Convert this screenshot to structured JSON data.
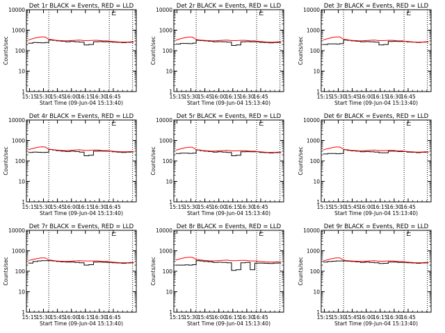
{
  "figure": {
    "background": "#ffffff"
  },
  "style": {
    "events_color": "#000000",
    "lld_color": "#ff0000",
    "marker_color": "#000000"
  },
  "chart_data": [
    {
      "type": "line",
      "title": "Det 1r BLACK = Events, RED = LLD",
      "ylabel": "Counts/sec",
      "xlabel": "Start Time (09-Jun-04 15:13:40)",
      "y_scale": "log",
      "ylim": [
        1,
        10000
      ],
      "y_ticks": [
        "1",
        "10",
        "100",
        "1000",
        "10000"
      ],
      "x_ticks": [
        "15:15",
        "15:30",
        "15:45",
        "16:00",
        "16:15",
        "16:30",
        "16:45"
      ],
      "x": [
        0,
        5,
        10,
        14,
        18,
        22,
        26,
        30,
        35,
        40,
        45,
        50,
        55,
        60,
        65,
        70,
        75,
        80,
        85,
        90,
        95,
        100,
        105,
        110,
        113
      ],
      "series": [
        {
          "name": "Events",
          "values": [
            230,
            250,
            245,
            240,
            250,
            330,
            320,
            300,
            290,
            270,
            280,
            270,
            260,
            190,
            200,
            270,
            275,
            270,
            270,
            260,
            255,
            245,
            255,
            260,
            265
          ]
        },
        {
          "name": "LLD",
          "values": [
            330,
            390,
            440,
            470,
            470,
            360,
            340,
            320,
            310,
            300,
            310,
            320,
            330,
            310,
            310,
            320,
            320,
            300,
            300,
            280,
            270,
            260,
            260,
            270,
            270
          ]
        }
      ],
      "vlines": [
        22,
        87,
        112
      ],
      "marker": "⊏"
    },
    {
      "type": "line",
      "title": "Det 2r BLACK = Events, RED = LLD",
      "ylabel": "Counts/sec",
      "xlabel": "Start Time (09-Jun-04 15:13:40)",
      "y_scale": "log",
      "ylim": [
        1,
        10000
      ],
      "y_ticks": [
        "1",
        "10",
        "100",
        "1000",
        "10000"
      ],
      "x_ticks": [
        "15:15",
        "15:30",
        "15:45",
        "16:00",
        "16:15",
        "16:30",
        "16:45"
      ],
      "x": [
        0,
        5,
        10,
        14,
        18,
        22,
        26,
        30,
        35,
        40,
        45,
        50,
        55,
        60,
        65,
        70,
        75,
        80,
        85,
        90,
        95,
        100,
        105,
        110,
        113
      ],
      "series": [
        {
          "name": "Events",
          "values": [
            210,
            225,
            225,
            220,
            230,
            320,
            310,
            300,
            290,
            270,
            275,
            270,
            260,
            180,
            190,
            270,
            275,
            270,
            270,
            255,
            250,
            240,
            250,
            255,
            260
          ]
        },
        {
          "name": "LLD",
          "values": [
            320,
            380,
            430,
            460,
            460,
            350,
            330,
            320,
            310,
            300,
            310,
            320,
            330,
            310,
            310,
            320,
            320,
            300,
            300,
            280,
            270,
            260,
            260,
            270,
            270
          ]
        }
      ],
      "vlines": [
        22,
        87,
        112
      ],
      "marker": "⊏"
    },
    {
      "type": "line",
      "title": "Det 3r BLACK = Events, RED = LLD",
      "ylabel": "Counts/sec",
      "xlabel": "Start Time (09-Jun-04 15:13:40)",
      "y_scale": "log",
      "ylim": [
        1,
        10000
      ],
      "y_ticks": [
        "1",
        "10",
        "100",
        "1000",
        "10000"
      ],
      "x_ticks": [
        "15:15",
        "15:30",
        "15:45",
        "16:00",
        "16:15",
        "16:30",
        "16:45"
      ],
      "x": [
        0,
        5,
        10,
        14,
        18,
        22,
        26,
        30,
        35,
        40,
        45,
        50,
        55,
        60,
        65,
        70,
        75,
        80,
        85,
        90,
        95,
        100,
        105,
        110,
        113
      ],
      "series": [
        {
          "name": "Events",
          "values": [
            200,
            215,
            215,
            210,
            220,
            330,
            320,
            300,
            290,
            270,
            275,
            270,
            260,
            190,
            200,
            280,
            285,
            280,
            280,
            265,
            260,
            250,
            260,
            265,
            270
          ]
        },
        {
          "name": "LLD",
          "values": [
            330,
            390,
            440,
            470,
            470,
            360,
            340,
            320,
            310,
            300,
            310,
            320,
            330,
            310,
            310,
            320,
            320,
            300,
            300,
            280,
            270,
            260,
            260,
            270,
            270
          ]
        }
      ],
      "vlines": [
        22,
        87,
        112
      ],
      "marker": "⊏"
    },
    {
      "type": "line",
      "title": "Det 4r BLACK = Events, RED = LLD",
      "ylabel": "Counts/sec",
      "xlabel": "Start Time (09-Jun-04 15:13:40)",
      "y_scale": "log",
      "ylim": [
        1,
        10000
      ],
      "y_ticks": [
        "1",
        "10",
        "100",
        "1000",
        "10000"
      ],
      "x_ticks": [
        "15:15",
        "15:30",
        "15:45",
        "16:00",
        "16:15",
        "16:30",
        "16:45"
      ],
      "x": [
        0,
        5,
        10,
        14,
        18,
        22,
        26,
        30,
        35,
        40,
        45,
        50,
        55,
        60,
        65,
        70,
        75,
        80,
        85,
        90,
        95,
        100,
        105,
        110,
        113
      ],
      "series": [
        {
          "name": "Events",
          "values": [
            260,
            270,
            265,
            260,
            265,
            360,
            340,
            320,
            300,
            290,
            300,
            290,
            270,
            180,
            190,
            300,
            305,
            300,
            300,
            280,
            270,
            260,
            270,
            275,
            280
          ]
        },
        {
          "name": "LLD",
          "values": [
            350,
            410,
            460,
            490,
            480,
            380,
            360,
            340,
            330,
            320,
            330,
            340,
            350,
            330,
            330,
            340,
            340,
            320,
            320,
            300,
            290,
            280,
            280,
            290,
            290
          ]
        }
      ],
      "vlines": [
        22,
        87,
        112
      ],
      "marker": "⊏"
    },
    {
      "type": "line",
      "title": "Det 5r BLACK = Events, RED = LLD",
      "ylabel": "Counts/sec",
      "xlabel": "Start Time (09-Jun-04 15:13:40)",
      "y_scale": "log",
      "ylim": [
        1,
        10000
      ],
      "y_ticks": [
        "1",
        "10",
        "100",
        "1000",
        "10000"
      ],
      "x_ticks": [
        "15:15",
        "15:30",
        "15:45",
        "16:00",
        "16:15",
        "16:30",
        "16:45"
      ],
      "x": [
        0,
        5,
        10,
        14,
        18,
        22,
        26,
        30,
        35,
        40,
        45,
        50,
        55,
        60,
        65,
        70,
        75,
        80,
        85,
        90,
        95,
        100,
        105,
        110,
        113
      ],
      "series": [
        {
          "name": "Events",
          "values": [
            230,
            240,
            240,
            235,
            240,
            340,
            320,
            300,
            290,
            270,
            280,
            270,
            260,
            180,
            190,
            280,
            285,
            280,
            280,
            260,
            255,
            245,
            255,
            260,
            265
          ]
        },
        {
          "name": "LLD",
          "values": [
            330,
            390,
            440,
            470,
            470,
            360,
            340,
            320,
            310,
            300,
            310,
            320,
            330,
            310,
            310,
            320,
            320,
            300,
            300,
            280,
            270,
            260,
            260,
            270,
            270
          ]
        }
      ],
      "vlines": [
        22,
        87,
        112
      ],
      "marker": "⊏"
    },
    {
      "type": "line",
      "title": "Det 6r BLACK = Events, RED = LLD",
      "ylabel": "Counts/sec",
      "xlabel": "Start Time (09-Jun-04 15:13:40)",
      "y_scale": "log",
      "ylim": [
        1,
        10000
      ],
      "y_ticks": [
        "1",
        "10",
        "100",
        "1000",
        "10000"
      ],
      "x_ticks": [
        "15:15",
        "15:30",
        "15:45",
        "16:00",
        "16:15",
        "16:30",
        "16:45"
      ],
      "x": [
        0,
        5,
        10,
        14,
        18,
        22,
        26,
        30,
        35,
        40,
        45,
        50,
        55,
        60,
        65,
        70,
        75,
        80,
        85,
        90,
        95,
        100,
        105,
        110,
        113
      ],
      "series": [
        {
          "name": "Events",
          "values": [
            220,
            230,
            230,
            225,
            230,
            350,
            330,
            310,
            300,
            280,
            290,
            280,
            270,
            250,
            250,
            300,
            300,
            290,
            290,
            270,
            265,
            255,
            265,
            270,
            275
          ]
        },
        {
          "name": "LLD",
          "values": [
            340,
            400,
            450,
            480,
            480,
            370,
            350,
            330,
            320,
            310,
            320,
            330,
            340,
            320,
            320,
            330,
            330,
            310,
            310,
            290,
            280,
            270,
            270,
            280,
            280
          ]
        }
      ],
      "vlines": [
        22,
        87,
        112
      ],
      "marker": "⊏"
    },
    {
      "type": "line",
      "title": "Det 7r BLACK = Events, RED = LLD",
      "ylabel": "Counts/sec",
      "xlabel": "Start Time (09-Jun-04 15:13:40)",
      "y_scale": "log",
      "ylim": [
        1,
        10000
      ],
      "y_ticks": [
        "1",
        "10",
        "100",
        "1000",
        "10000"
      ],
      "x_ticks": [
        "15:15",
        "15:30",
        "15:45",
        "16:00",
        "16:15",
        "16:30",
        "16:45"
      ],
      "x": [
        0,
        5,
        10,
        14,
        18,
        22,
        26,
        30,
        35,
        40,
        45,
        50,
        55,
        60,
        65,
        70,
        75,
        80,
        85,
        90,
        95,
        100,
        105,
        110,
        113
      ],
      "series": [
        {
          "name": "Events",
          "values": [
            250,
            300,
            320,
            330,
            330,
            330,
            320,
            300,
            290,
            280,
            280,
            270,
            260,
            200,
            210,
            280,
            280,
            275,
            270,
            260,
            255,
            245,
            255,
            260,
            265
          ]
        },
        {
          "name": "LLD",
          "values": [
            330,
            380,
            420,
            450,
            450,
            360,
            340,
            320,
            310,
            300,
            310,
            320,
            330,
            320,
            320,
            320,
            320,
            300,
            300,
            280,
            270,
            260,
            260,
            270,
            270
          ]
        }
      ],
      "vlines": [
        22,
        87,
        112
      ],
      "marker": "⊏"
    },
    {
      "type": "line",
      "title": "Det 8r BLACK = Events, RED = LLD",
      "ylabel": "Counts/sec",
      "xlabel": "Start Time (09-Jun-04 15:13:40)",
      "y_scale": "log",
      "ylim": [
        1,
        10000
      ],
      "y_ticks": [
        "1",
        "10",
        "100",
        "1000",
        "10000"
      ],
      "x_ticks": [
        "15:15",
        "15:30",
        "15:45",
        "16:00",
        "16:15",
        "16:30",
        "16:45"
      ],
      "x": [
        0,
        5,
        10,
        14,
        18,
        22,
        26,
        30,
        35,
        40,
        45,
        50,
        55,
        60,
        65,
        70,
        75,
        80,
        85,
        90,
        95,
        100,
        105,
        110,
        113
      ],
      "series": [
        {
          "name": "Events",
          "values": [
            200,
            200,
            205,
            200,
            210,
            330,
            320,
            300,
            290,
            270,
            275,
            270,
            260,
            110,
            120,
            260,
            270,
            120,
            250,
            250,
            245,
            240,
            250,
            255,
            260
          ]
        },
        {
          "name": "LLD",
          "values": [
            350,
            410,
            460,
            480,
            480,
            380,
            360,
            340,
            330,
            320,
            330,
            340,
            350,
            330,
            330,
            340,
            340,
            320,
            320,
            300,
            290,
            280,
            280,
            290,
            290
          ]
        }
      ],
      "vlines": [
        22,
        87,
        112
      ],
      "marker": "⊏"
    },
    {
      "type": "line",
      "title": "Det 9r BLACK = Events, RED = LLD",
      "ylabel": "Counts/sec",
      "xlabel": "Start Time (09-Jun-04 15:13:40)",
      "y_scale": "log",
      "ylim": [
        1,
        10000
      ],
      "y_ticks": [
        "1",
        "10",
        "100",
        "1000",
        "10000"
      ],
      "x_ticks": [
        "15:15",
        "15:30",
        "15:45",
        "16:00",
        "16:15",
        "16:30",
        "16:45"
      ],
      "x": [
        0,
        5,
        10,
        14,
        18,
        22,
        26,
        30,
        35,
        40,
        45,
        50,
        55,
        60,
        65,
        70,
        75,
        80,
        85,
        90,
        95,
        100,
        105,
        110,
        113
      ],
      "series": [
        {
          "name": "Events",
          "values": [
            280,
            300,
            310,
            320,
            320,
            320,
            310,
            300,
            290,
            270,
            280,
            270,
            260,
            240,
            245,
            280,
            280,
            270,
            270,
            260,
            255,
            245,
            255,
            260,
            265
          ]
        },
        {
          "name": "LLD",
          "values": [
            320,
            370,
            420,
            450,
            450,
            350,
            330,
            320,
            310,
            300,
            310,
            320,
            330,
            310,
            310,
            320,
            320,
            300,
            300,
            280,
            270,
            260,
            260,
            270,
            270
          ]
        }
      ],
      "vlines": [
        22,
        87,
        112
      ],
      "marker": "⊏"
    }
  ]
}
